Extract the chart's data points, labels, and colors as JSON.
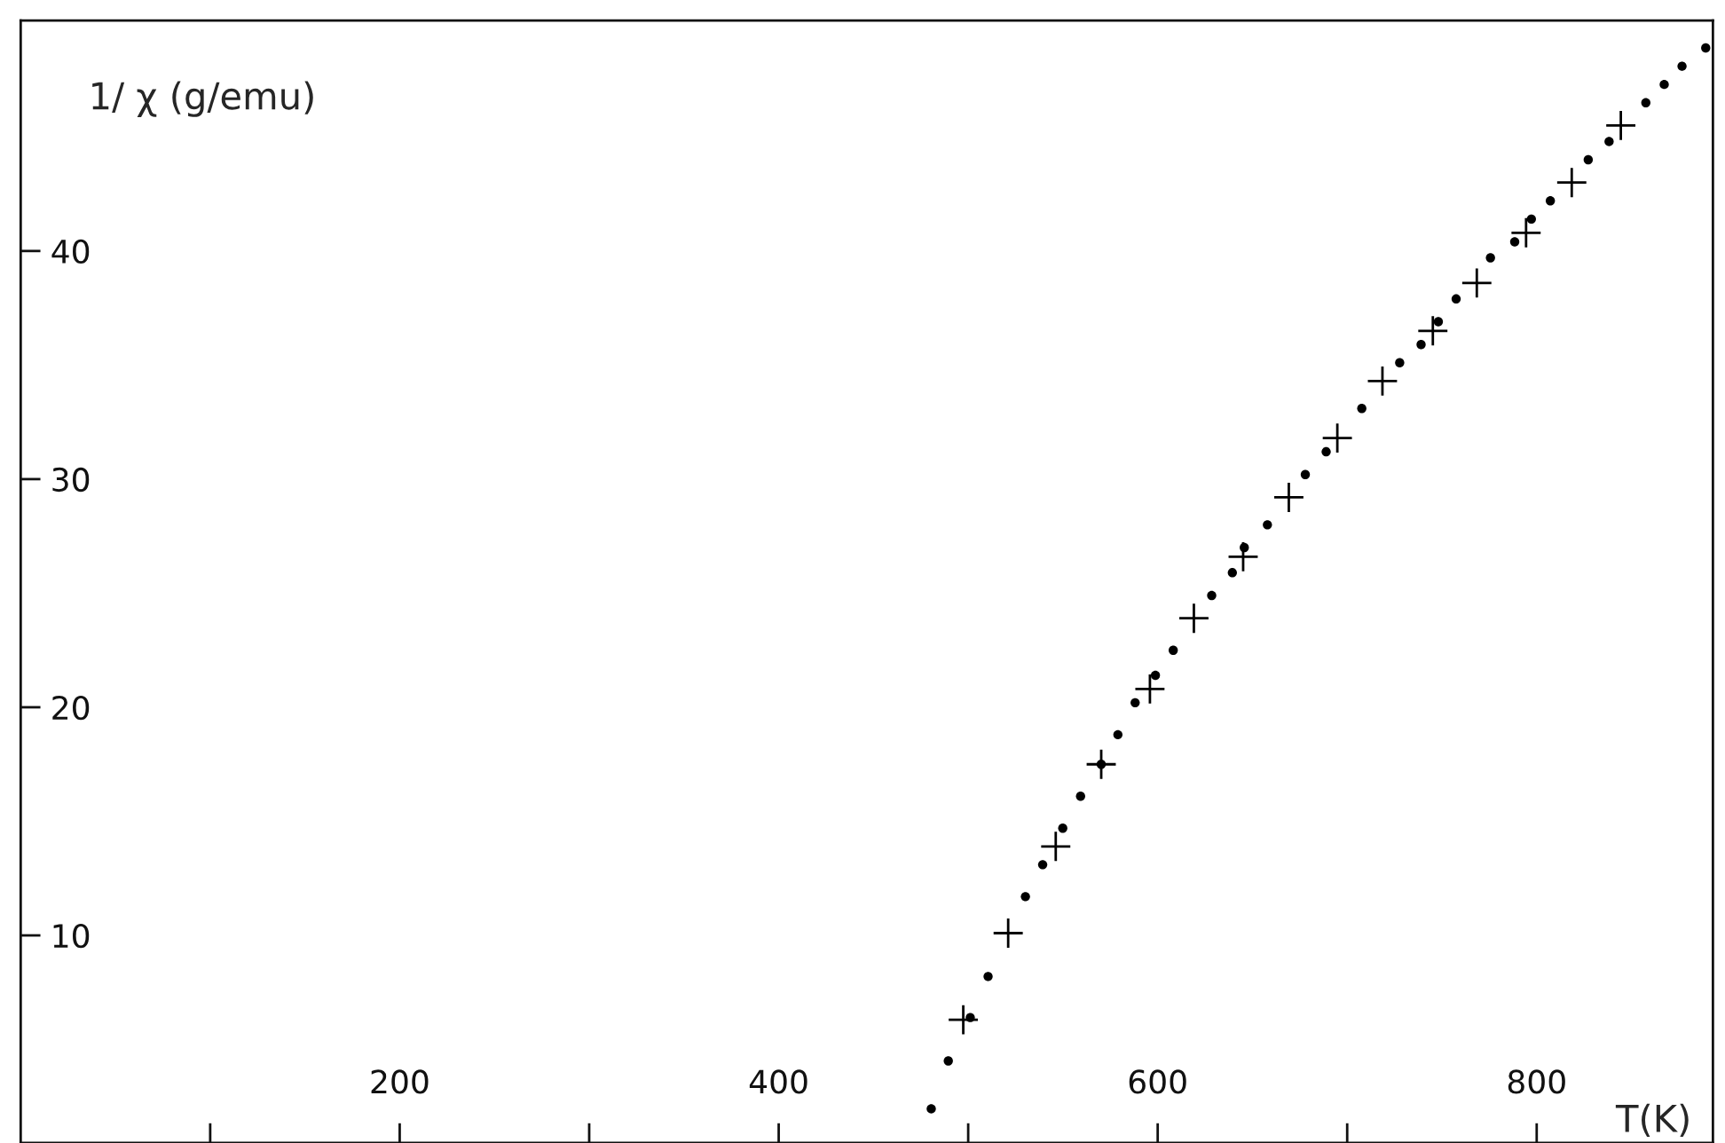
{
  "chart_data": {
    "type": "scatter",
    "xlabel": "T(K)",
    "ylabel": "1/ χ (g/emu)",
    "xlim": [
      0,
      893
    ],
    "ylim": [
      0.9,
      50.1
    ],
    "xticks": [
      {
        "value": 100,
        "label": null
      },
      200,
      {
        "value": 300,
        "label": null
      },
      400,
      {
        "value": 500,
        "label": null
      },
      600,
      {
        "value": 700,
        "label": null
      },
      800
    ],
    "yticks": [
      10,
      20,
      30,
      40
    ],
    "grid": false,
    "legend": false,
    "series": [
      {
        "color": "#000000",
        "marker": "circle",
        "x": [
          480.5,
          489.5,
          501.1,
          510.5,
          530.2,
          539.3,
          549.9,
          559.3,
          570.2,
          579.0,
          588.1,
          598.8,
          608.2,
          628.5,
          639.4,
          645.7,
          657.9,
          677.9,
          688.9,
          707.7,
          727.7,
          739.0,
          748.1,
          757.5,
          775.6,
          788.4,
          797.2,
          807.2,
          827.2,
          838.2,
          857.6,
          867.3,
          876.7,
          889.2
        ],
        "values": [
          2.4,
          4.5,
          6.4,
          8.2,
          11.7,
          13.1,
          14.7,
          16.1,
          17.5,
          18.8,
          20.2,
          21.4,
          22.5,
          24.9,
          25.9,
          27.0,
          28.0,
          30.2,
          31.2,
          33.1,
          35.1,
          35.9,
          36.9,
          37.9,
          39.7,
          40.4,
          41.4,
          42.2,
          44.0,
          44.8,
          46.5,
          47.3,
          48.1,
          48.9
        ]
      },
      {
        "color": "#000000",
        "marker": "cross",
        "x": [
          497.4,
          521.1,
          546.2,
          570.2,
          595.9,
          619.1,
          645.1,
          669.2,
          694.8,
          718.6,
          745.2,
          768.4,
          794.4,
          818.5,
          844.4
        ],
        "values": [
          6.3,
          10.1,
          13.9,
          17.5,
          20.8,
          23.9,
          26.6,
          29.2,
          31.8,
          34.3,
          36.5,
          38.6,
          40.8,
          43.0,
          45.5
        ]
      }
    ]
  }
}
